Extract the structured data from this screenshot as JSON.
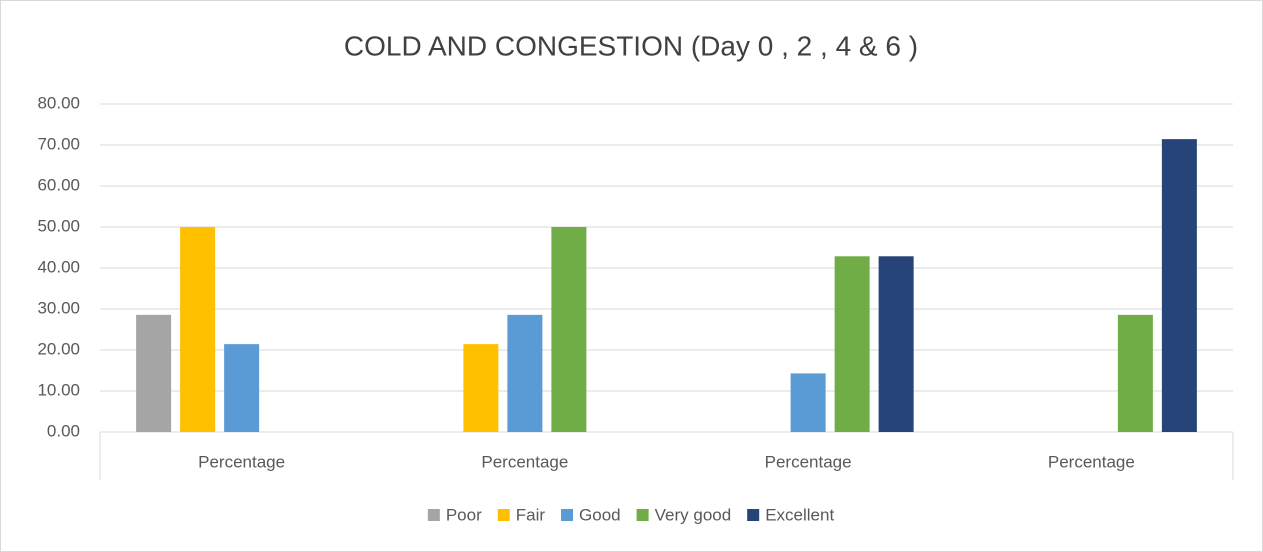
{
  "chart_data": {
    "type": "bar",
    "title": "COLD AND CONGESTION (Day 0 , 2 , 4 & 6 )",
    "categories": [
      "Percentage",
      "Percentage",
      "Percentage",
      "Percentage"
    ],
    "series": [
      {
        "name": "Poor",
        "color": "#a5a5a5",
        "values": [
          28.57,
          0,
          0,
          0
        ]
      },
      {
        "name": "Fair",
        "color": "#ffc000",
        "values": [
          50,
          21.43,
          0,
          0
        ]
      },
      {
        "name": "Good",
        "color": "#5b9bd5",
        "values": [
          21.43,
          28.57,
          14.29,
          0
        ]
      },
      {
        "name": "Very good",
        "color": "#70ad47",
        "values": [
          0,
          50,
          42.86,
          28.57
        ]
      },
      {
        "name": "Excellent",
        "color": "#264478",
        "values": [
          0,
          0,
          42.86,
          71.43
        ]
      }
    ],
    "ylim": [
      0,
      80
    ],
    "yticks": [
      {
        "value": 0,
        "label": "0.00"
      },
      {
        "value": 10,
        "label": "10.00"
      },
      {
        "value": 20,
        "label": "20.00"
      },
      {
        "value": 30,
        "label": "30.00"
      },
      {
        "value": 40,
        "label": "40.00"
      },
      {
        "value": 50,
        "label": "50.00"
      },
      {
        "value": 60,
        "label": "60.00"
      },
      {
        "value": 70,
        "label": "70.00"
      },
      {
        "value": 80,
        "label": "80.00"
      }
    ],
    "grid": true,
    "legend": "bottom"
  }
}
